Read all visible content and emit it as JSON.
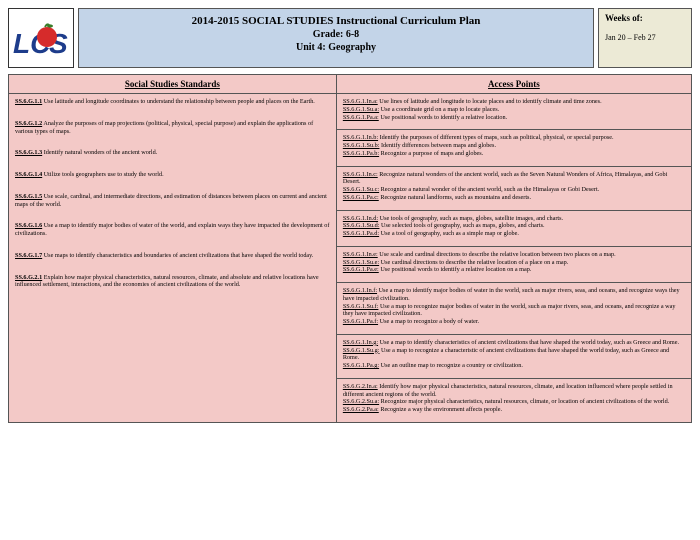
{
  "header": {
    "title_line1": "2014-2015 SOCIAL STUDIES Instructional Curriculum Plan",
    "grade_line": "Grade: 6-8",
    "unit_line": "Unit 4: Geography",
    "weeks_label": "Weeks of:",
    "weeks_value": "Jan 20 – Feb 27"
  },
  "columns": {
    "standards_heading": "Social Studies Standards",
    "access_heading": "Access Points"
  },
  "rows": [
    {
      "standard": {
        "code": "SS.6.G.1.1",
        "text": " Use latitude and longitude coordinates to understand the relationship between people and places on the Earth."
      },
      "access": [
        {
          "code": "SS.6.G.1.In.a:",
          "text": " Use lines of latitude and longitude to locate places and to identify climate and time zones."
        },
        {
          "code": "SS.6.G.1.Su.a:",
          "text": " Use a coordinate grid on a map to locate places."
        },
        {
          "code": "SS.6.G.1.Pa.a:",
          "text": " Use positional words to identify a relative location."
        }
      ]
    },
    {
      "standard": {
        "code": "SS.6.G.1.2",
        "text": " Analyze the purposes of map projections (political, physical, special purpose) and explain the applications of various types of maps."
      },
      "access": [
        {
          "code": "SS.6.G.1.In.b:",
          "text": " Identify the purposes of different types of maps, such as political, physical, or special purpose."
        },
        {
          "code": "SS.6.G.1.Su.b:",
          "text": " Identify differences between maps and globes."
        },
        {
          "code": "SS.6.G.1.Pa.b:",
          "text": " Recognize a purpose of maps and globes."
        }
      ]
    },
    {
      "standard": {
        "code": "SS.6.G.1.3",
        "text": " Identify natural wonders of the ancient world."
      },
      "access": [
        {
          "code": "SS.6.G.1.In.c:",
          "text": " Recognize natural wonders of the ancient world, such as the Seven Natural Wonders of Africa, Himalayas, and Gobi Desert."
        },
        {
          "code": "SS.6.G.1.Su.c:",
          "text": " Recognize a natural wonder of the ancient world, such as the Himalayas or Gobi Desert."
        },
        {
          "code": "SS.6.G.1.Pa.c:",
          "text": " Recognize natural landforms, such as mountains and deserts."
        }
      ]
    },
    {
      "standard": {
        "code": "SS.6.G.1.4",
        "text": " Utilize tools geographers use to study the world."
      },
      "access": [
        {
          "code": "SS.6.G.1.In.d:",
          "text": " Use tools of geography, such as maps, globes, satellite images, and charts."
        },
        {
          "code": "SS.6.G.1.Su.d:",
          "text": " Use selected tools of geography, such as maps, globes, and charts."
        },
        {
          "code": "SS.6.G.1.Pa.d:",
          "text": " Use a tool of geography, such as a simple map or globe."
        }
      ]
    },
    {
      "standard": {
        "code": "SS.6.G.1.5",
        "text": " Use scale, cardinal, and intermediate directions, and estimation of distances between places on current and ancient maps of the world."
      },
      "access": [
        {
          "code": "SS.6.G.1.In.e:",
          "text": " Use scale and cardinal directions to describe the relative location between two places on a map."
        },
        {
          "code": "SS.6.G.1.Su.e:",
          "text": " Use cardinal directions to describe the relative location of a place on a map."
        },
        {
          "code": "SS.6.G.1.Pa.e:",
          "text": " Use positional words to identify a relative location on a map."
        }
      ]
    },
    {
      "standard": {
        "code": "SS.6.G.1.6",
        "text": " Use a map to identify major bodies of water of the world, and explain ways they have impacted the development of civilizations."
      },
      "access": [
        {
          "code": "SS.6.G.1.In.f:",
          "text": " Use a map to identify major bodies of water in the world, such as major rivers, seas, and oceans, and recognize ways they have impacted civilization."
        },
        {
          "code": "SS.6.G.1.Su.f:",
          "text": " Use a map to recognize major bodies of water in the world, such as major rivers, seas, and oceans, and recognize a way they have impacted civilization."
        },
        {
          "code": "SS.6.G.1.Pa.f:",
          "text": " Use a map to recognize a body of water."
        }
      ]
    },
    {
      "standard": {
        "code": "SS.6.G.1.7",
        "text": " Use maps to identify characteristics and boundaries of ancient civilizations that have shaped the world today."
      },
      "access": [
        {
          "code": "SS.6.G.1.In.g:",
          "text": " Use a map to identify characteristics of ancient civilizations that have shaped the world today, such as Greece and Rome."
        },
        {
          "code": "SS.6.G.1.Su.g:",
          "text": " Use a map to recognize a characteristic of ancient civilizations that have shaped the world today, such as Greece and Rome."
        },
        {
          "code": "SS.6.G.1.Pa.g:",
          "text": " Use an outline map to recognize a country or civilization."
        }
      ]
    },
    {
      "standard": {
        "code": "SS.6.G.2.1",
        "text": " Explain how major physical characteristics, natural resources, climate, and absolute and relative locations have influenced settlement, interactions, and the economies of ancient civilizations of the world."
      },
      "access": [
        {
          "code": "SS.6.G.2.In.a:",
          "text": " Identify how major physical characteristics, natural resources, climate, and location influenced where people settled in different ancient regions of the world."
        },
        {
          "code": "SS.6.G.2.Su.a:",
          "text": " Recognize major physical characteristics, natural resources, climate, or location of ancient civilizations of the world."
        },
        {
          "code": "SS.6.G.2.Pa.a:",
          "text": " Recognize a way the environment affects people."
        }
      ]
    }
  ]
}
